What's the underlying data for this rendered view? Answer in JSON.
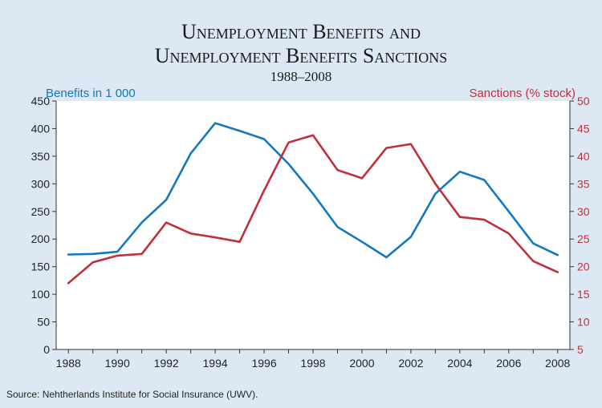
{
  "chart_data": {
    "type": "line",
    "title_line1": "Unemployment Benefits and",
    "title_line2": "Unemployment Benefits Sanctions",
    "subtitle": "1988–2008",
    "left_axis_label": "Benefits in 1 000",
    "right_axis_label": "Sanctions (% stock)",
    "source": "Source: Nehtherlands Institute for Social Insurance (UWV).",
    "x_ticks": [
      "1988",
      "1990",
      "1992",
      "1994",
      "1996",
      "1998",
      "2000",
      "2002",
      "2004",
      "2006",
      "2008"
    ],
    "xlim": [
      1987.5,
      2008.5
    ],
    "ylim_left": [
      0,
      450
    ],
    "ylim_right": [
      5,
      50
    ],
    "y_ticks_left": [
      "0",
      "50",
      "100",
      "150",
      "200",
      "250",
      "300",
      "350",
      "400",
      "450"
    ],
    "y_ticks_right": [
      "5",
      "10",
      "15",
      "20",
      "25",
      "30",
      "35",
      "40",
      "45",
      "50"
    ],
    "x": [
      1988,
      1989,
      1990,
      1991,
      1992,
      1993,
      1994,
      1995,
      1996,
      1997,
      1998,
      1999,
      2000,
      2001,
      2002,
      2003,
      2004,
      2005,
      2006,
      2007,
      2008
    ],
    "series": [
      {
        "axis": "left",
        "color": "#1278c0",
        "values": [
          172,
          173,
          177,
          230,
          271,
          355,
          410,
          396,
          381,
          336,
          282,
          222,
          195,
          167,
          204,
          282,
          322,
          307,
          250,
          192,
          171
        ]
      },
      {
        "axis": "right",
        "color": "#c0303b",
        "values": [
          17.0,
          20.8,
          22.0,
          22.3,
          28.0,
          26.0,
          25.3,
          24.5,
          33.8,
          42.5,
          43.8,
          37.5,
          36.0,
          41.5,
          42.2,
          35.0,
          29.0,
          28.5,
          26.0,
          21.0,
          19.0
        ]
      }
    ]
  }
}
